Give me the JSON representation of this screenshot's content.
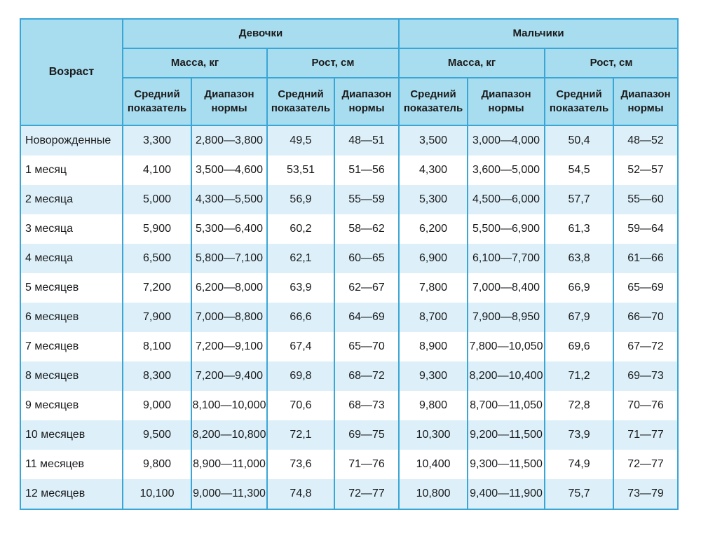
{
  "header": {
    "age": "Возраст",
    "girls": "Девочки",
    "boys": "Мальчики",
    "mass": "Масса, кг",
    "height": "Рост, см",
    "avg_line1": "Средний",
    "avg_line2": "показатель",
    "range_line1": "Диапазон",
    "range_line2": "нормы"
  },
  "rows": [
    {
      "age": "Новорожденные",
      "g_mass_avg": "3,300",
      "g_mass_range": "2,800—3,800",
      "g_height_avg": "49,5",
      "g_height_range": "48—51",
      "b_mass_avg": "3,500",
      "b_mass_range": "3,000—4,000",
      "b_height_avg": "50,4",
      "b_height_range": "48—52"
    },
    {
      "age": "1 месяц",
      "g_mass_avg": "4,100",
      "g_mass_range": "3,500—4,600",
      "g_height_avg": "53,51",
      "g_height_range": "51—56",
      "b_mass_avg": "4,300",
      "b_mass_range": "3,600—5,000",
      "b_height_avg": "54,5",
      "b_height_range": "52—57"
    },
    {
      "age": "2 месяца",
      "g_mass_avg": "5,000",
      "g_mass_range": "4,300—5,500",
      "g_height_avg": "56,9",
      "g_height_range": "55—59",
      "b_mass_avg": "5,300",
      "b_mass_range": "4,500—6,000",
      "b_height_avg": "57,7",
      "b_height_range": "55—60"
    },
    {
      "age": "3 месяца",
      "g_mass_avg": "5,900",
      "g_mass_range": "5,300—6,400",
      "g_height_avg": "60,2",
      "g_height_range": "58—62",
      "b_mass_avg": "6,200",
      "b_mass_range": "5,500—6,900",
      "b_height_avg": "61,3",
      "b_height_range": "59—64"
    },
    {
      "age": "4 месяца",
      "g_mass_avg": "6,500",
      "g_mass_range": "5,800—7,100",
      "g_height_avg": "62,1",
      "g_height_range": "60—65",
      "b_mass_avg": "6,900",
      "b_mass_range": "6,100—7,700",
      "b_height_avg": "63,8",
      "b_height_range": "61—66"
    },
    {
      "age": "5 месяцев",
      "g_mass_avg": "7,200",
      "g_mass_range": "6,200—8,000",
      "g_height_avg": "63,9",
      "g_height_range": "62—67",
      "b_mass_avg": "7,800",
      "b_mass_range": "7,000—8,400",
      "b_height_avg": "66,9",
      "b_height_range": "65—69"
    },
    {
      "age": "6 месяцев",
      "g_mass_avg": "7,900",
      "g_mass_range": "7,000—8,800",
      "g_height_avg": "66,6",
      "g_height_range": "64—69",
      "b_mass_avg": "8,700",
      "b_mass_range": "7,900—8,950",
      "b_height_avg": "67,9",
      "b_height_range": "66—70"
    },
    {
      "age": "7 месяцев",
      "g_mass_avg": "8,100",
      "g_mass_range": "7,200—9,100",
      "g_height_avg": "67,4",
      "g_height_range": "65—70",
      "b_mass_avg": "8,900",
      "b_mass_range": "7,800—10,050",
      "b_height_avg": "69,6",
      "b_height_range": "67—72"
    },
    {
      "age": "8 месяцев",
      "g_mass_avg": "8,300",
      "g_mass_range": "7,200—9,400",
      "g_height_avg": "69,8",
      "g_height_range": "68—72",
      "b_mass_avg": "9,300",
      "b_mass_range": "8,200—10,400",
      "b_height_avg": "71,2",
      "b_height_range": "69—73"
    },
    {
      "age": "9 месяцев",
      "g_mass_avg": "9,000",
      "g_mass_range": "8,100—10,000",
      "g_height_avg": "70,6",
      "g_height_range": "68—73",
      "b_mass_avg": "9,800",
      "b_mass_range": "8,700—11,050",
      "b_height_avg": "72,8",
      "b_height_range": "70—76"
    },
    {
      "age": "10 месяцев",
      "g_mass_avg": "9,500",
      "g_mass_range": "8,200—10,800",
      "g_height_avg": "72,1",
      "g_height_range": "69—75",
      "b_mass_avg": "10,300",
      "b_mass_range": "9,200—11,500",
      "b_height_avg": "73,9",
      "b_height_range": "71—77"
    },
    {
      "age": "11 месяцев",
      "g_mass_avg": "9,800",
      "g_mass_range": "8,900—11,000",
      "g_height_avg": "73,6",
      "g_height_range": "71—76",
      "b_mass_avg": "10,400",
      "b_mass_range": "9,300—11,500",
      "b_height_avg": "74,9",
      "b_height_range": "72—77"
    },
    {
      "age": "12 месяцев",
      "g_mass_avg": "10,100",
      "g_mass_range": "9,000—11,300",
      "g_height_avg": "74,8",
      "g_height_range": "72—77",
      "b_mass_avg": "10,800",
      "b_mass_range": "9,400—11,900",
      "b_height_avg": "75,7",
      "b_height_range": "73—79"
    }
  ],
  "colors": {
    "header_bg": "#a8dcef",
    "border": "#3aa6d6",
    "stripe": "#ddf0fa"
  }
}
